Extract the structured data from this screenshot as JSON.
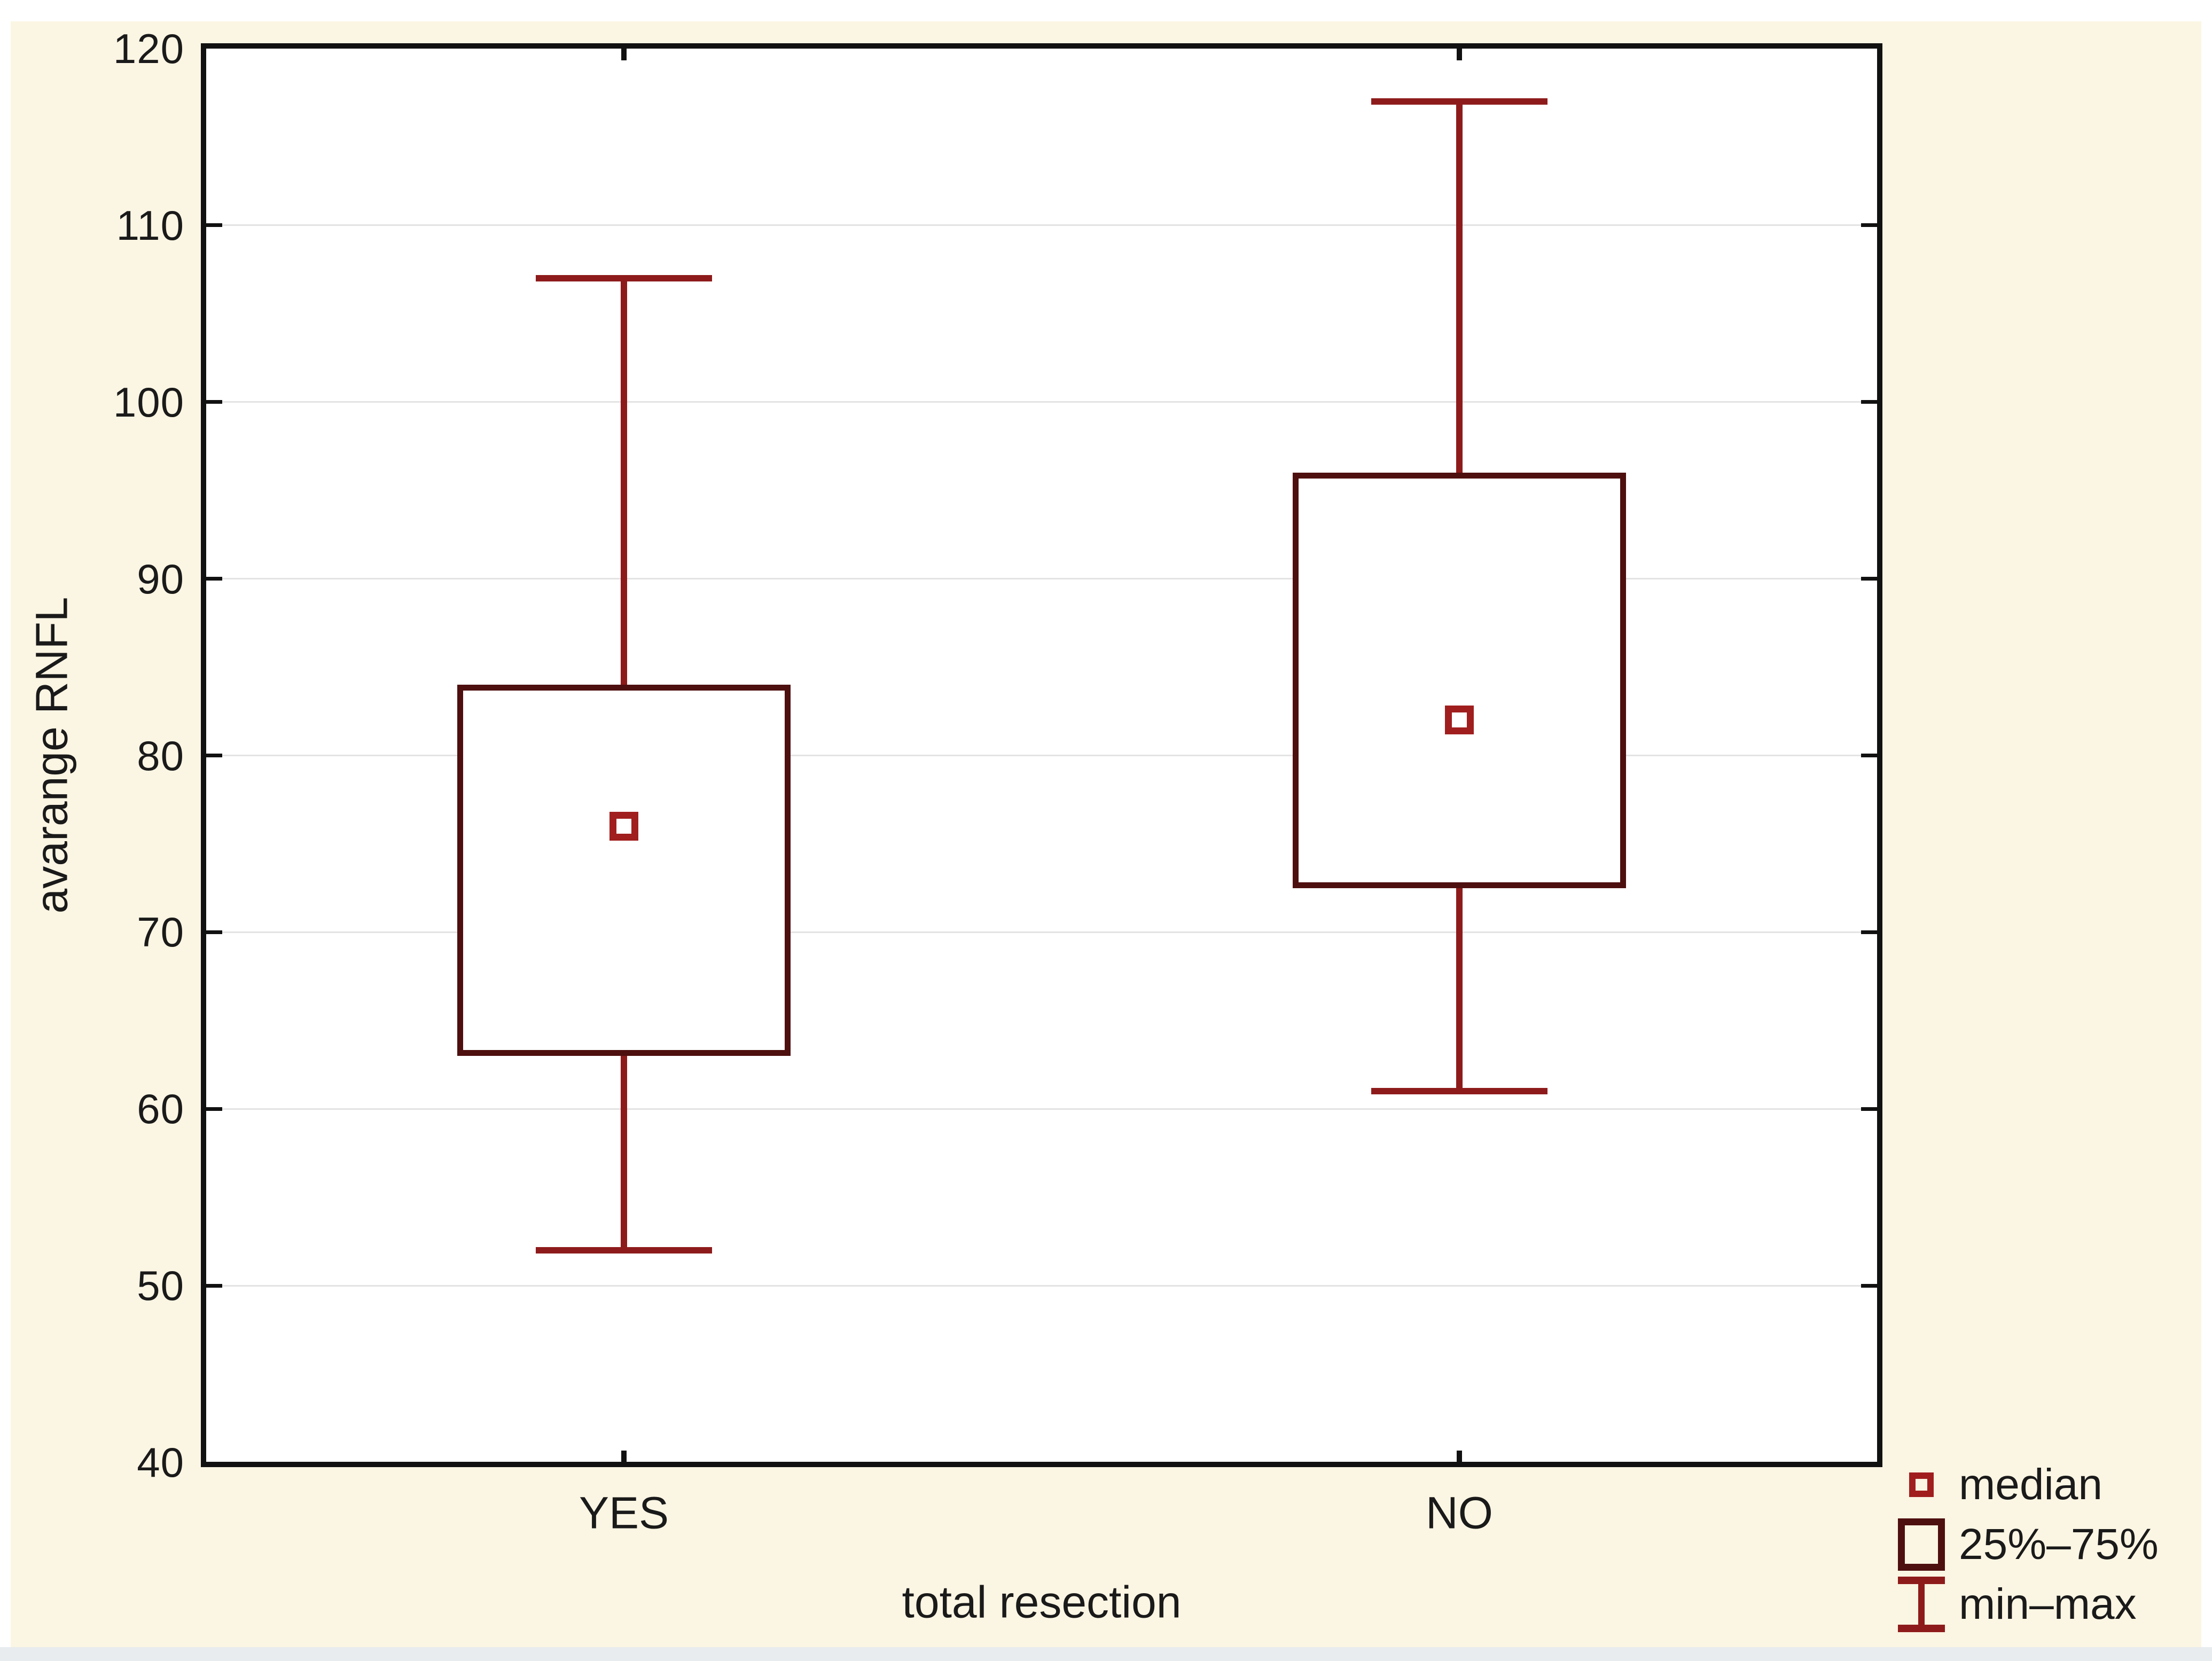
{
  "chart_data": {
    "type": "box",
    "title": "",
    "xlabel": "total resection",
    "ylabel": "avarange RNFL",
    "categories": [
      "YES",
      "NO"
    ],
    "series": [
      {
        "category": "YES",
        "min": 52,
        "q1": 63,
        "median": 76,
        "q3": 84,
        "max": 107
      },
      {
        "category": "NO",
        "min": 61,
        "q1": 72.5,
        "median": 82,
        "q3": 96,
        "max": 117
      }
    ],
    "ylim": [
      40,
      120
    ],
    "yticks": [
      40,
      50,
      60,
      70,
      80,
      90,
      100,
      110,
      120
    ],
    "grid": true,
    "legend_position": "bottom-right"
  },
  "legend": {
    "items": [
      {
        "symbol": "median-square",
        "label": "median"
      },
      {
        "symbol": "iqr-box",
        "label": "25%–75%"
      },
      {
        "symbol": "minmax-whisker",
        "label": "min–max"
      }
    ]
  },
  "colors": {
    "background": "#FBF5E3",
    "plot_background": "#FFFFFF",
    "axis_border": "#111111",
    "gridline": "#E3E3E3",
    "tick": "#111111",
    "box_border": "#4E0F0F",
    "whisker": "#8E1B1B",
    "median_marker": "#A01E1E",
    "text": "#1A1A1A",
    "bottom_strip": "#E8ECEF"
  }
}
